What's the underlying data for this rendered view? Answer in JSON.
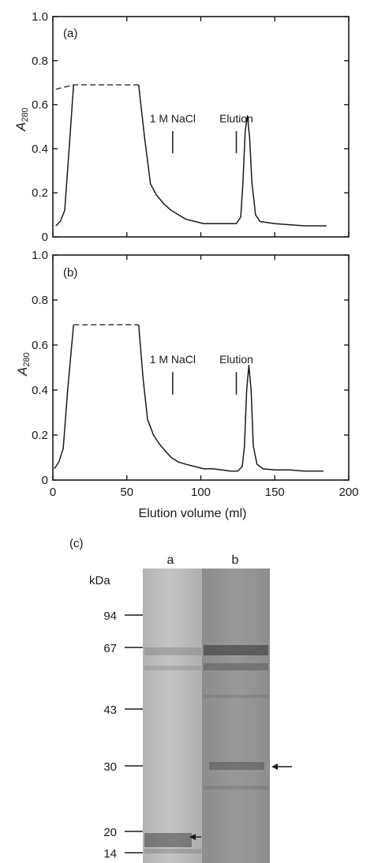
{
  "chart_data": [
    {
      "type": "line",
      "panel_label": "(a)",
      "ylabel": "A",
      "ylabel_sub": "280",
      "xlim": [
        0,
        200
      ],
      "ylim": [
        0,
        1.0
      ],
      "y_ticks": [
        "0",
        "0.2",
        "0.4",
        "0.6",
        "0.8",
        "1.0"
      ],
      "x_ticks": [
        "0",
        "50",
        "100",
        "150",
        "200"
      ],
      "plateau": [
        [
          2,
          0.67
        ],
        [
          14,
          0.69
        ],
        [
          58,
          0.69
        ]
      ],
      "series_x": [
        2,
        5,
        8,
        11,
        14,
        58,
        62,
        66,
        70,
        75,
        80,
        85,
        90,
        96,
        102,
        108,
        114,
        120,
        124,
        127,
        128.5,
        130,
        131.5,
        133,
        134.5,
        137,
        140,
        150,
        160,
        170,
        180,
        185
      ],
      "series_y": [
        0.05,
        0.07,
        0.12,
        0.4,
        0.69,
        0.69,
        0.45,
        0.24,
        0.19,
        0.15,
        0.12,
        0.1,
        0.08,
        0.07,
        0.06,
        0.06,
        0.06,
        0.06,
        0.06,
        0.09,
        0.25,
        0.48,
        0.55,
        0.45,
        0.25,
        0.1,
        0.07,
        0.06,
        0.055,
        0.05,
        0.05,
        0.05
      ],
      "markers": [
        {
          "x": 81,
          "label": "1 M NaCl"
        },
        {
          "x": 124,
          "label": "Elution"
        }
      ]
    },
    {
      "type": "line",
      "panel_label": "(b)",
      "ylabel": "A",
      "ylabel_sub": "280",
      "xlabel": "Elution volume (ml)",
      "xlim": [
        0,
        200
      ],
      "ylim": [
        0,
        1.0
      ],
      "y_ticks": [
        "0",
        "0.2",
        "0.4",
        "0.6",
        "0.8",
        "1.0"
      ],
      "x_ticks": [
        "0",
        "50",
        "100",
        "150",
        "200"
      ],
      "plateau": [
        [
          14,
          0.69
        ],
        [
          58,
          0.69
        ]
      ],
      "series_x": [
        1,
        4,
        7,
        10,
        14,
        58,
        61,
        64,
        68,
        72,
        76,
        80,
        85,
        90,
        96,
        102,
        108,
        114,
        120,
        125,
        128,
        129.5,
        131,
        132.5,
        134,
        135.5,
        138,
        142,
        150,
        160,
        170,
        183
      ],
      "series_y": [
        0.05,
        0.08,
        0.14,
        0.4,
        0.69,
        0.69,
        0.45,
        0.27,
        0.2,
        0.16,
        0.13,
        0.1,
        0.08,
        0.07,
        0.06,
        0.05,
        0.05,
        0.045,
        0.04,
        0.04,
        0.06,
        0.15,
        0.4,
        0.51,
        0.4,
        0.15,
        0.07,
        0.05,
        0.045,
        0.045,
        0.04,
        0.04
      ],
      "markers": [
        {
          "x": 81,
          "label": "1 M NaCl"
        },
        {
          "x": 124,
          "label": "Elution"
        }
      ]
    }
  ],
  "gel": {
    "panel_label": "(c)",
    "unit_label": "kDa",
    "lane_labels": [
      "a",
      "b"
    ],
    "markers": [
      "94",
      "67",
      "43",
      "30",
      "20",
      "14"
    ]
  }
}
